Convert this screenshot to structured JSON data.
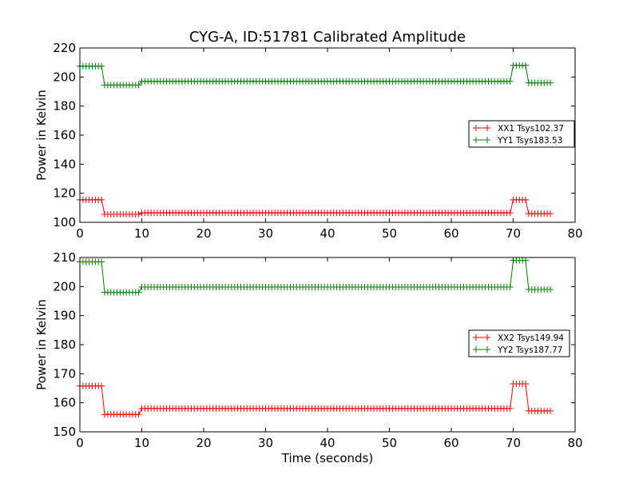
{
  "chart_data": [
    {
      "type": "line",
      "title": "CYG-A, ID:51781 Calibrated Amplitude",
      "xlabel": "",
      "ylabel": "Power in Kelvin",
      "xlim": [
        0,
        80
      ],
      "ylim": [
        100,
        220
      ],
      "xticks": [
        0,
        10,
        20,
        30,
        40,
        50,
        60,
        70,
        80
      ],
      "yticks": [
        100,
        120,
        140,
        160,
        180,
        200,
        220
      ],
      "grid": false,
      "legend": "center-right",
      "series": [
        {
          "name": "XX1 Tsys102.37",
          "color": "#ff0000",
          "marker": "+",
          "segments": [
            {
              "from": 0,
              "to": 3.5,
              "value": 115.5
            },
            {
              "from": 4,
              "to": 9.5,
              "value": 105.5
            },
            {
              "from": 10,
              "to": 69.5,
              "value": 106.5
            },
            {
              "from": 70,
              "to": 72,
              "value": 115.5
            },
            {
              "from": 72.5,
              "to": 76,
              "value": 106.0
            }
          ]
        },
        {
          "name": "YY1 Tsys183.53",
          "color": "#008000",
          "marker": "+",
          "segments": [
            {
              "from": 0,
              "to": 3.5,
              "value": 207.5
            },
            {
              "from": 4,
              "to": 9.5,
              "value": 194.5
            },
            {
              "from": 10,
              "to": 69.5,
              "value": 197.0
            },
            {
              "from": 70,
              "to": 72,
              "value": 208.0
            },
            {
              "from": 72.5,
              "to": 76,
              "value": 196.0
            }
          ]
        }
      ]
    },
    {
      "type": "line",
      "title": "",
      "xlabel": "Time (seconds)",
      "ylabel": "Power in Kelvin",
      "xlim": [
        0,
        80
      ],
      "ylim": [
        150,
        210
      ],
      "xticks": [
        0,
        10,
        20,
        30,
        40,
        50,
        60,
        70,
        80
      ],
      "yticks": [
        150,
        160,
        170,
        180,
        190,
        200,
        210
      ],
      "grid": false,
      "legend": "center-right",
      "series": [
        {
          "name": "XX2 Tsys149.94",
          "color": "#ff0000",
          "marker": "+",
          "segments": [
            {
              "from": 0,
              "to": 3.5,
              "value": 165.8
            },
            {
              "from": 4,
              "to": 9.5,
              "value": 156.0
            },
            {
              "from": 10,
              "to": 69.5,
              "value": 158.0
            },
            {
              "from": 70,
              "to": 72,
              "value": 166.5
            },
            {
              "from": 72.5,
              "to": 76,
              "value": 157.2
            }
          ]
        },
        {
          "name": "YY2 Tsys187.77",
          "color": "#008000",
          "marker": "+",
          "segments": [
            {
              "from": 0,
              "to": 3.5,
              "value": 208.5
            },
            {
              "from": 4,
              "to": 9.5,
              "value": 198.0
            },
            {
              "from": 10,
              "to": 69.5,
              "value": 199.8
            },
            {
              "from": 70,
              "to": 72,
              "value": 209.0
            },
            {
              "from": 72.5,
              "to": 76,
              "value": 199.0
            }
          ]
        }
      ]
    }
  ]
}
